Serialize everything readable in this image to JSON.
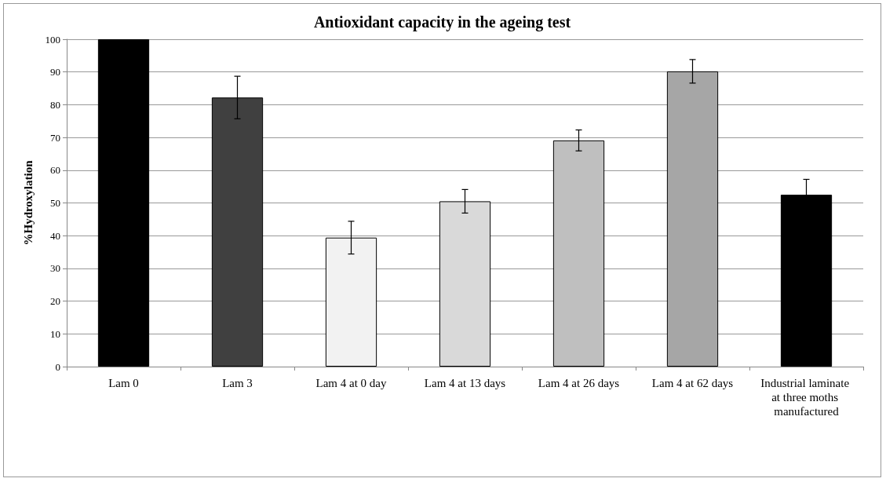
{
  "chart_data": {
    "type": "bar",
    "title": "Antioxidant capacity in the ageing test",
    "ylabel": "%Hydroxylation",
    "categories": [
      "Lam 0",
      "Lam 3",
      "Lam 4 at 0 day",
      "Lam 4 at 13 days",
      "Lam 4 at 26 days",
      "Lam 4 at 62 days",
      "Industrial laminate at three moths manufactured"
    ],
    "values": [
      100,
      82.2,
      39.4,
      50.5,
      69.1,
      90.2,
      52.5
    ],
    "errors": [
      null,
      6.5,
      5,
      3.6,
      3.2,
      3.6,
      4.7
    ],
    "colors": [
      "#000000",
      "#404040",
      "#f2f2f2",
      "#d9d9d9",
      "#bfbfbf",
      "#a6a6a6",
      "#000000"
    ],
    "ylim": [
      0,
      100
    ],
    "yticks": [
      0,
      10,
      20,
      30,
      40,
      50,
      60,
      70,
      80,
      90,
      100
    ],
    "grid": "y"
  }
}
